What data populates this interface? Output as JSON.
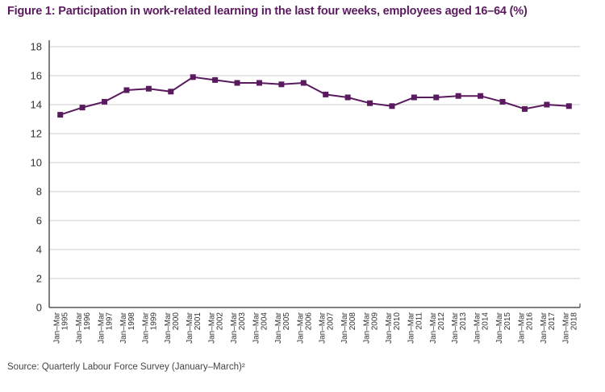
{
  "title": "Figure 1: Participation in work-related learning in the last four weeks, employees aged 16–64 (%)",
  "source": "Source: Quarterly Labour Force Survey (January–March)²",
  "colors": {
    "series": "#5a1a5e",
    "grid": "#dddddd",
    "axis": "#555555",
    "title": "#5a1a5e"
  },
  "chart_data": {
    "type": "line",
    "title": "Figure 1: Participation in work-related learning in the last four weeks, employees aged 16–64 (%)",
    "xlabel": "",
    "ylabel": "",
    "ylim": [
      0,
      18
    ],
    "yticks": [
      0,
      2,
      4,
      6,
      8,
      10,
      12,
      14,
      16,
      18
    ],
    "grid": true,
    "legend": "none",
    "categories": [
      [
        "Jan–Mar",
        "1995"
      ],
      [
        "Jan–Mar",
        "1996"
      ],
      [
        "Jan–Mar",
        "1997"
      ],
      [
        "Jan–Mar",
        "1998"
      ],
      [
        "Jan–Mar",
        "1999"
      ],
      [
        "Jan–Mar",
        "2000"
      ],
      [
        "Jan–Mar",
        "2001"
      ],
      [
        "Jan–Mar",
        "2002"
      ],
      [
        "Jan–Mar",
        "2003"
      ],
      [
        "Jan–Mar",
        "2004"
      ],
      [
        "Jan–Mar",
        "2005"
      ],
      [
        "Jan–Mar",
        "2006"
      ],
      [
        "Jan–Mar",
        "2007"
      ],
      [
        "Jan–Mar",
        "2008"
      ],
      [
        "Jan–Mar",
        "2009"
      ],
      [
        "Jan–Mar",
        "2010"
      ],
      [
        "Jan–Mar",
        "2011"
      ],
      [
        "Jan–Mar",
        "2012"
      ],
      [
        "Jan–Mar",
        "2013"
      ],
      [
        "Jan–Mar",
        "2014"
      ],
      [
        "Jan–Mar",
        "2015"
      ],
      [
        "Jan–Mar",
        "2016"
      ],
      [
        "Jan–Mar",
        "2017"
      ],
      [
        "Jan–Mar",
        "2018"
      ]
    ],
    "series": [
      {
        "name": "Participation (%)",
        "values": [
          13.3,
          13.8,
          14.2,
          15.0,
          15.1,
          14.9,
          15.9,
          15.7,
          15.5,
          15.5,
          15.4,
          15.5,
          14.7,
          14.5,
          14.1,
          13.9,
          14.5,
          14.5,
          14.6,
          14.6,
          14.2,
          13.7,
          14.0,
          13.9
        ]
      }
    ]
  }
}
